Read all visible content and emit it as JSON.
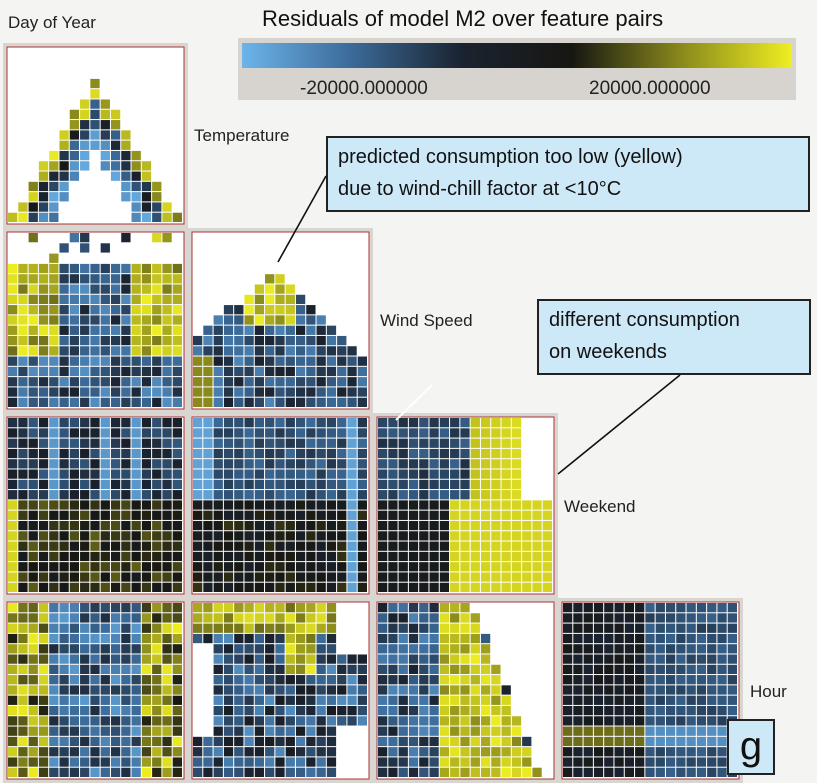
{
  "title": "Residuals of model M2 over feature pairs",
  "colorbar": {
    "colors": [
      "#6cb4ea",
      "#3b6a98",
      "#1a2330",
      "#171712",
      "#8a8a1c",
      "#eeee22"
    ],
    "tick_labels": [
      "-20000.000000",
      "20000.000000"
    ]
  },
  "variables": [
    "Day of Year",
    "Temperature",
    "Wind Speed",
    "Weekend",
    "Hour"
  ],
  "annotations": [
    {
      "text_lines": [
        "predicted consumption too low (yellow)",
        "due to wind-chill factor at <10°C"
      ]
    },
    {
      "text_lines": [
        "different consumption",
        "on weekends"
      ]
    }
  ],
  "panel_letter": "g",
  "chart_data": {
    "type": "heatmap",
    "title": "Residuals of model M2 over feature pairs",
    "color_scale": {
      "low_label": "-20000.000000",
      "high_label": "20000.000000",
      "low_color": "#6cb4ea",
      "mid_color": "#171712",
      "high_color": "#eeee22"
    },
    "cells": [
      {
        "row": "Temperature",
        "col": "Day of Year",
        "note": "arch-shaped band of residual cells; yellow on outer edges, blue inside"
      },
      {
        "row": "Wind Speed",
        "col": "Day of Year",
        "note": "yellow at low wind in winter, blue in summer"
      },
      {
        "row": "Wind Speed",
        "col": "Temperature",
        "note": "yellow cluster at high wind and low temperature"
      },
      {
        "row": "Weekend",
        "col": "Day of Year",
        "note": "two rows: weekday dark/blue, weekend olive"
      },
      {
        "row": "Weekend",
        "col": "Temperature",
        "note": "two rows: blue columns vs dark olive"
      },
      {
        "row": "Weekend",
        "col": "Wind Speed",
        "note": "weekday dark to yellow at high wind; weekend yellow at high wind"
      },
      {
        "row": "Hour",
        "col": "Day of Year",
        "note": "mixed yellow and blue cells"
      },
      {
        "row": "Hour",
        "col": "Temperature",
        "note": "mixed dark, blue and yellow cells"
      },
      {
        "row": "Hour",
        "col": "Wind Speed",
        "note": "yellow cluster at low hours / high wind"
      },
      {
        "row": "Hour",
        "col": "Weekend",
        "note": "weekday column dark/olive; weekend column blue"
      }
    ]
  }
}
